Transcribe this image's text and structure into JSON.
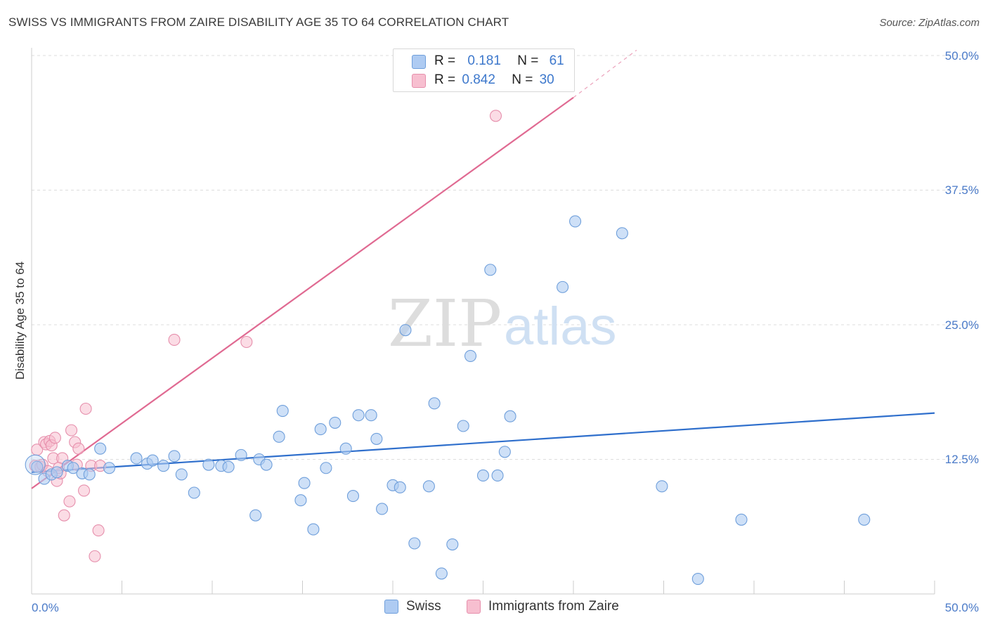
{
  "title": "SWISS VS IMMIGRANTS FROM ZAIRE DISABILITY AGE 35 TO 64 CORRELATION CHART",
  "source": "Source: ZipAtlas.com",
  "watermark": {
    "zip": "ZIP",
    "atlas": "atlas"
  },
  "legend": {
    "rows": [
      {
        "r_label": "R =",
        "r_value": "0.181",
        "n_label": "N =",
        "n_value": "61",
        "color": "#aecbf2"
      },
      {
        "r_label": "R =",
        "r_value": "0.842",
        "n_label": "N =",
        "n_value": "30",
        "color": "#f7bfd0"
      }
    ]
  },
  "bottom_legend": {
    "swiss": "Swiss",
    "zaire": "Immigrants from Zaire"
  },
  "colors": {
    "swiss_fill": "#aecbf2",
    "swiss_stroke": "#6f9fdb",
    "swiss_line": "#2f6fcc",
    "zaire_fill": "#f7bfd0",
    "zaire_stroke": "#e68fac",
    "zaire_line": "#e06a92",
    "axis_label": "#4a7ac8",
    "grid": "#dddddd"
  },
  "chart_data": {
    "type": "scatter",
    "title": "SWISS VS IMMIGRANTS FROM ZAIRE DISABILITY AGE 35 TO 64 CORRELATION CHART",
    "xlabel": "",
    "ylabel": "Disability Age 35 to 64",
    "xlim": [
      0,
      50
    ],
    "ylim": [
      0,
      50
    ],
    "x_tick_labels": [
      "0.0%",
      "50.0%"
    ],
    "y_ticks": [
      12.5,
      25.0,
      37.5,
      50.0
    ],
    "y_tick_labels": [
      "12.5%",
      "25.0%",
      "37.5%",
      "50.0%"
    ],
    "series": [
      {
        "name": "Swiss",
        "R": 0.181,
        "N": 61,
        "trend": {
          "x": [
            0,
            50
          ],
          "y": [
            11.3,
            16.8
          ]
        },
        "points": [
          [
            0.3,
            11.8
          ],
          [
            0.7,
            10.7
          ],
          [
            1.1,
            11.1
          ],
          [
            1.4,
            11.3
          ],
          [
            2.0,
            11.9
          ],
          [
            2.3,
            11.7
          ],
          [
            2.8,
            11.2
          ],
          [
            3.2,
            11.1
          ],
          [
            3.8,
            13.5
          ],
          [
            4.3,
            11.7
          ],
          [
            5.8,
            12.6
          ],
          [
            6.4,
            12.1
          ],
          [
            6.7,
            12.4
          ],
          [
            7.3,
            11.9
          ],
          [
            7.9,
            12.8
          ],
          [
            8.3,
            11.1
          ],
          [
            9.0,
            9.4
          ],
          [
            9.8,
            12.0
          ],
          [
            10.5,
            11.9
          ],
          [
            10.9,
            11.8
          ],
          [
            11.6,
            12.9
          ],
          [
            12.4,
            7.3
          ],
          [
            12.6,
            12.5
          ],
          [
            13.0,
            12.0
          ],
          [
            13.7,
            14.6
          ],
          [
            13.9,
            17.0
          ],
          [
            14.9,
            8.7
          ],
          [
            15.1,
            10.3
          ],
          [
            15.6,
            6.0
          ],
          [
            16.0,
            15.3
          ],
          [
            16.3,
            11.7
          ],
          [
            16.8,
            15.9
          ],
          [
            17.4,
            13.5
          ],
          [
            17.8,
            9.1
          ],
          [
            18.1,
            16.6
          ],
          [
            18.8,
            16.6
          ],
          [
            19.1,
            14.4
          ],
          [
            19.4,
            7.9
          ],
          [
            20.0,
            10.1
          ],
          [
            20.4,
            9.9
          ],
          [
            20.7,
            24.5
          ],
          [
            21.2,
            4.7
          ],
          [
            22.0,
            10.0
          ],
          [
            22.3,
            17.7
          ],
          [
            22.7,
            1.9
          ],
          [
            23.3,
            4.6
          ],
          [
            23.9,
            15.6
          ],
          [
            24.3,
            22.1
          ],
          [
            25.0,
            11.0
          ],
          [
            25.4,
            30.1
          ],
          [
            25.8,
            11.0
          ],
          [
            26.2,
            13.2
          ],
          [
            26.5,
            16.5
          ],
          [
            29.4,
            28.5
          ],
          [
            30.1,
            34.6
          ],
          [
            32.7,
            33.5
          ],
          [
            34.9,
            10.0
          ],
          [
            36.9,
            1.4
          ],
          [
            39.3,
            6.9
          ],
          [
            46.1,
            6.9
          ],
          [
            0.2,
            12.0
          ]
        ]
      },
      {
        "name": "Immigrants from Zaire",
        "R": 0.842,
        "N": 30,
        "trend": {
          "x": [
            0,
            30
          ],
          "y": [
            9.8,
            46.1
          ]
        },
        "trend_dashed": {
          "x": [
            30,
            33.5
          ],
          "y": [
            46.1,
            50.5
          ]
        },
        "points": [
          [
            0.2,
            11.9
          ],
          [
            0.3,
            13.4
          ],
          [
            0.5,
            11.8
          ],
          [
            0.6,
            12.0
          ],
          [
            0.7,
            14.1
          ],
          [
            0.8,
            13.9
          ],
          [
            0.9,
            11.4
          ],
          [
            1.0,
            14.2
          ],
          [
            1.1,
            13.8
          ],
          [
            1.2,
            12.6
          ],
          [
            1.3,
            14.5
          ],
          [
            1.4,
            10.5
          ],
          [
            1.6,
            11.2
          ],
          [
            1.7,
            12.6
          ],
          [
            1.8,
            7.3
          ],
          [
            2.1,
            8.6
          ],
          [
            2.2,
            15.2
          ],
          [
            2.4,
            14.1
          ],
          [
            2.5,
            12.0
          ],
          [
            2.6,
            13.5
          ],
          [
            2.9,
            9.6
          ],
          [
            3.0,
            17.2
          ],
          [
            3.3,
            11.9
          ],
          [
            3.5,
            3.5
          ],
          [
            3.7,
            5.9
          ],
          [
            3.8,
            11.9
          ],
          [
            7.9,
            23.6
          ],
          [
            11.9,
            23.4
          ],
          [
            25.7,
            44.4
          ],
          [
            1.5,
            11.7
          ]
        ]
      }
    ]
  }
}
